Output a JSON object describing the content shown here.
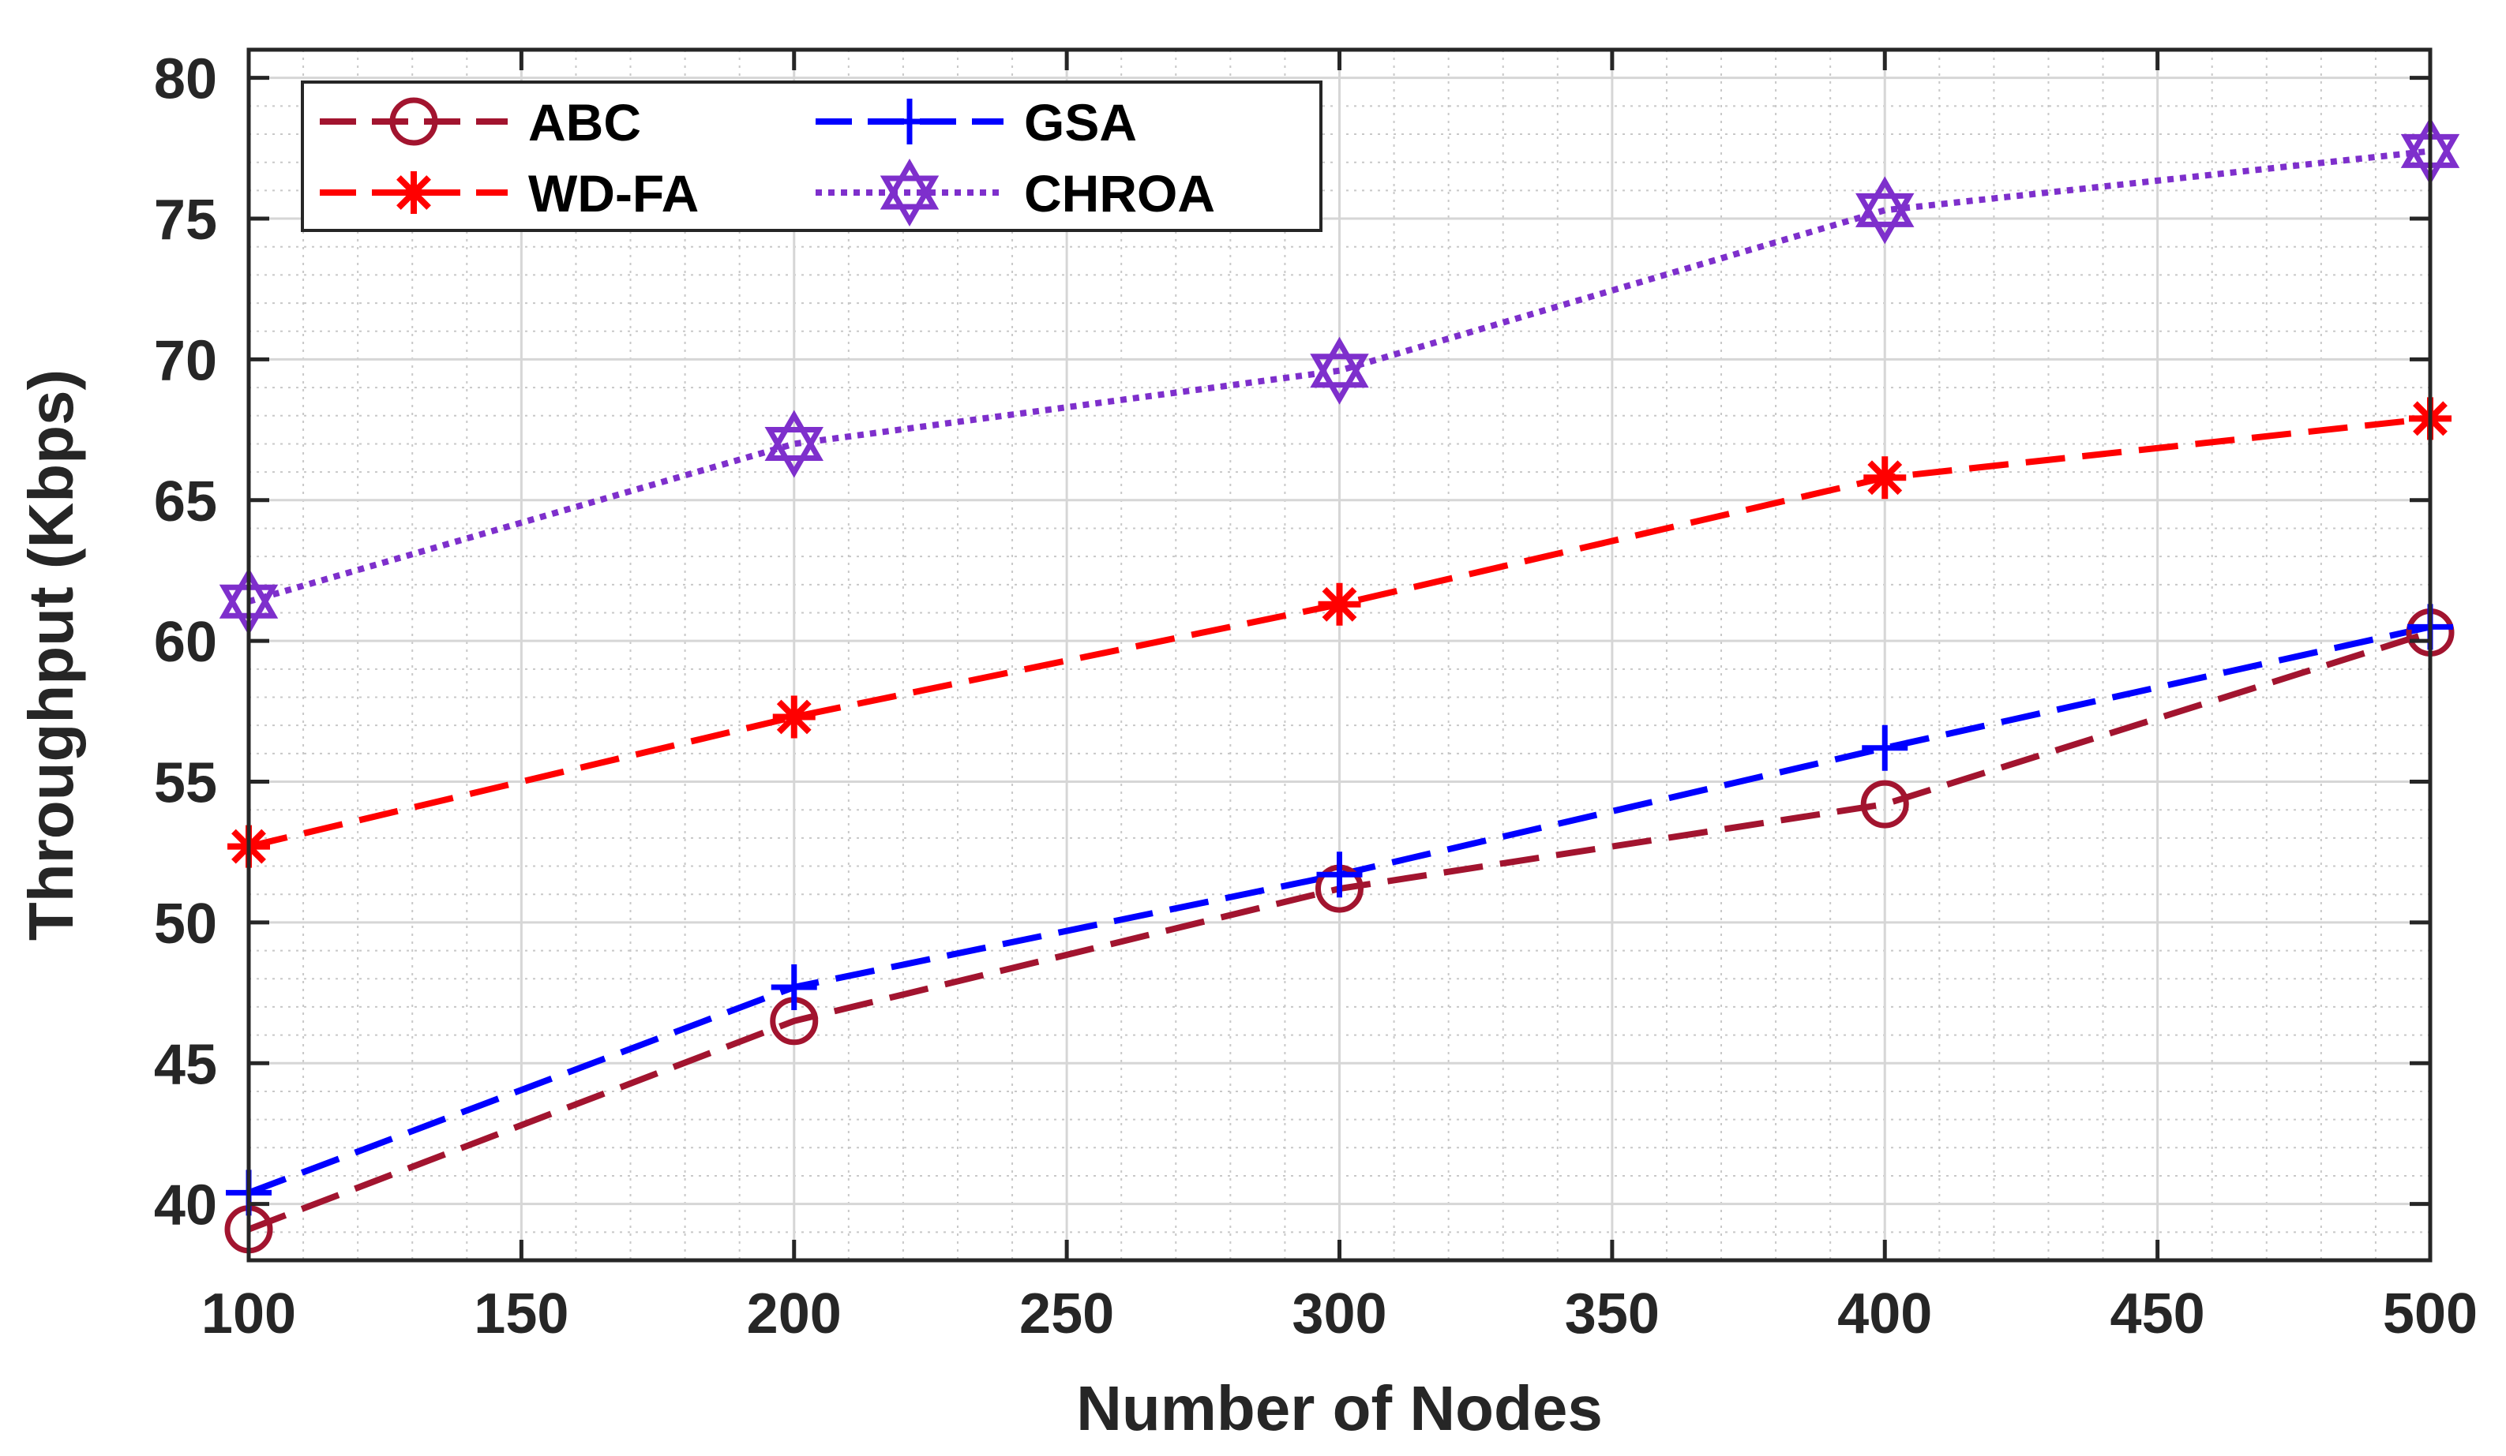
{
  "chart_data": {
    "type": "line",
    "title": "",
    "xlabel": "Number of Nodes",
    "ylabel": "Throughput (Kbps)",
    "xlim": [
      100,
      500
    ],
    "ylim": [
      38,
      81
    ],
    "xticks": [
      100,
      150,
      200,
      250,
      300,
      350,
      400,
      450,
      500
    ],
    "yticks": [
      40,
      45,
      50,
      55,
      60,
      65,
      70,
      75,
      80
    ],
    "grid": true,
    "minor_grid": true,
    "legend_position": "top-left",
    "x": [
      100,
      200,
      300,
      400,
      500
    ],
    "series": [
      {
        "name": "ABC",
        "values": [
          39.1,
          46.5,
          51.2,
          54.2,
          60.3
        ],
        "color": "#A2142F",
        "dash": "long-dash",
        "marker": "circle"
      },
      {
        "name": "WD-FA",
        "values": [
          52.7,
          57.3,
          61.3,
          65.8,
          67.9
        ],
        "color": "#FF0000",
        "dash": "long-dash",
        "marker": "asterisk"
      },
      {
        "name": "GSA",
        "values": [
          40.4,
          47.7,
          51.7,
          56.2,
          60.5
        ],
        "color": "#0000FF",
        "dash": "long-dash",
        "marker": "plus"
      },
      {
        "name": "CHROA",
        "values": [
          61.4,
          67.0,
          69.6,
          75.3,
          77.4
        ],
        "color": "#7E2FCC",
        "dash": "dotted",
        "marker": "hexagram"
      }
    ]
  }
}
